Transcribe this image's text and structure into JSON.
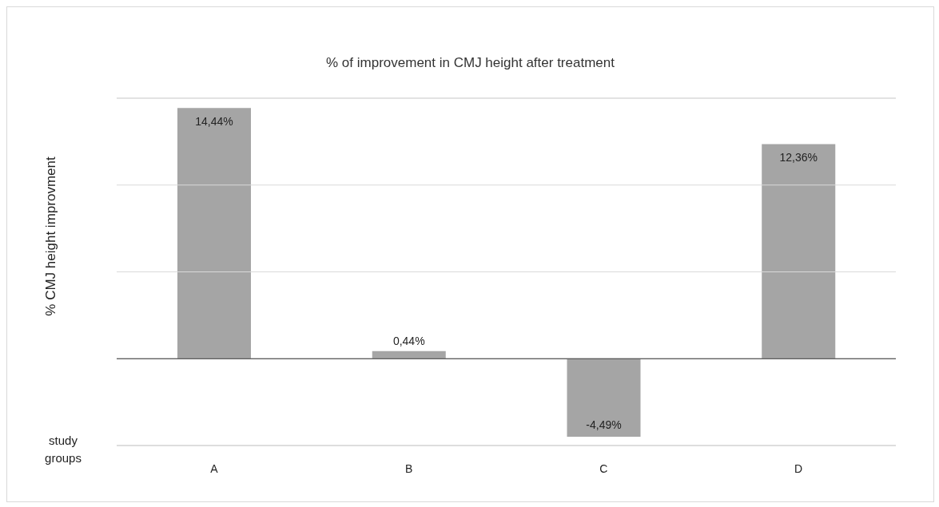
{
  "chart_data": {
    "type": "bar",
    "title": "% of improvement in CMJ height after treatment",
    "xlabel": "study groups",
    "ylabel": "% CMJ height improvment",
    "categories": [
      "A",
      "B",
      "C",
      "D"
    ],
    "values": [
      14.44,
      0.44,
      -4.49,
      12.36
    ],
    "value_labels": [
      "14,44%",
      "0,44%",
      "-4,49%",
      "12,36%"
    ],
    "color": "#a5a5a5",
    "ylim": [
      -5,
      15
    ],
    "yticks": [
      {
        "value": -5,
        "label": null
      },
      {
        "value": 0,
        "label": null
      },
      {
        "value": 5,
        "label": null
      },
      {
        "value": 10,
        "label": null
      },
      {
        "value": 15,
        "label": null
      }
    ],
    "grid": "y",
    "tick_labels": "x"
  }
}
